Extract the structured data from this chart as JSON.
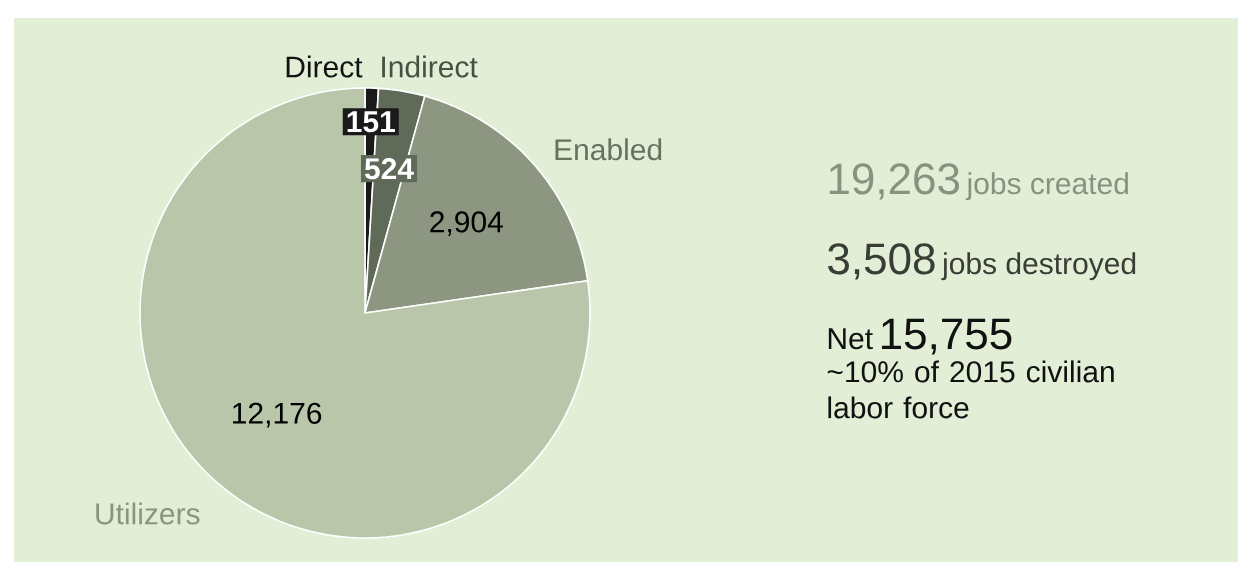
{
  "chart_data": {
    "type": "pie",
    "categories": [
      "Direct",
      "Indirect",
      "Enabled",
      "Utilizers"
    ],
    "values": [
      151,
      524,
      2904,
      12176
    ],
    "value_labels": [
      "151",
      "524",
      "2,904",
      "12,176"
    ],
    "colors": [
      "#1a1a1a",
      "#5f6a58",
      "#8c9680",
      "#b9c6aa"
    ],
    "annotations": [
      "19,263",
      "jobs created",
      "3,508",
      "jobs destroyed",
      "Net",
      "15,755",
      "~10% of 2015 civilian labor force"
    ]
  }
}
